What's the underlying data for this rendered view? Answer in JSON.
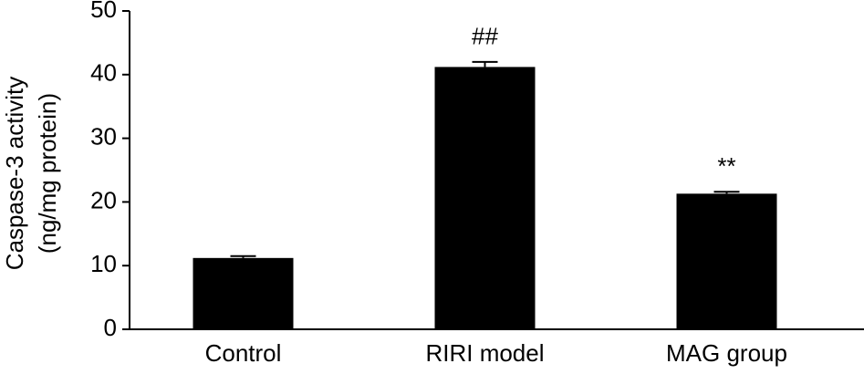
{
  "chart_data": {
    "type": "bar",
    "y_label": [
      "Caspase-3 activity",
      "(ng/mg protein)"
    ],
    "categories": [
      "Control",
      "RIRI model",
      "MAG group"
    ],
    "values": [
      11.2,
      41.2,
      21.3
    ],
    "errors": [
      0.3,
      0.8,
      0.3
    ],
    "color": "#000000",
    "annotations": [
      {
        "category": "RIRI model",
        "text": "##"
      },
      {
        "category": "MAG group",
        "text": "**"
      }
    ],
    "ylim": [
      0,
      50
    ],
    "yticks": [
      0,
      10,
      20,
      30,
      40,
      50
    ],
    "grid": false
  }
}
